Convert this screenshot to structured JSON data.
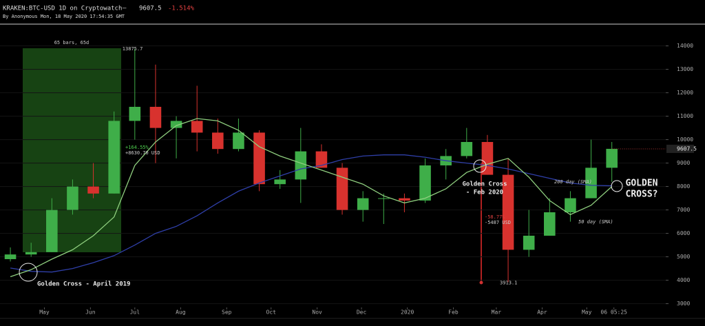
{
  "chart_data": {
    "type": "candlestick",
    "title": "KRAKEN:BTC-USD 1D on Cryptowatch",
    "separator": "—",
    "change": "-1.514%",
    "subtitle": "By Anonymous Mon, 18 May 2020 17:54:35 GMT",
    "x": [
      0.5,
      1.5,
      2.5,
      3.5,
      4.5,
      5.5,
      6.5,
      7.5,
      8.5,
      9.5,
      10.5,
      11.5,
      12.5,
      13.5,
      14.5,
      15.5,
      16.5,
      17.5,
      18.5,
      19.5,
      20.5,
      21.5,
      22.5,
      23.5,
      24.5,
      25.5,
      26.5,
      27.5,
      28.5,
      29.5
    ],
    "open": [
      4900,
      5100,
      5200,
      7000,
      8000,
      7700,
      10800,
      11400,
      10500,
      10800,
      10300,
      9600,
      10300,
      8100,
      8300,
      9500,
      8800,
      7000,
      7500,
      7500,
      7400,
      8900,
      9300,
      9900,
      8500,
      5300,
      5900,
      6900,
      7500,
      8800
    ],
    "high": [
      5400,
      5600,
      7500,
      8300,
      9000,
      11200,
      13875.7,
      13200,
      11000,
      12300,
      10900,
      10900,
      10400,
      8700,
      10500,
      9800,
      9000,
      7800,
      7700,
      7700,
      9200,
      9600,
      10500,
      10200,
      9200,
      7000,
      7500,
      7800,
      10000,
      9900
    ],
    "low": [
      4800,
      5000,
      5200,
      6800,
      7500,
      7700,
      10000,
      9000,
      9200,
      9500,
      9400,
      9500,
      7800,
      7900,
      7300,
      8800,
      6800,
      6500,
      6400,
      6900,
      7300,
      8300,
      9200,
      8500,
      3913.1,
      5000,
      5900,
      6500,
      7500,
      8200
    ],
    "close": [
      5100,
      5200,
      7000,
      8000,
      7700,
      10800,
      11400,
      10500,
      10800,
      10300,
      9600,
      10300,
      8100,
      8300,
      9500,
      8800,
      7000,
      7500,
      7500,
      7400,
      8900,
      9300,
      9900,
      8500,
      5300,
      5900,
      6900,
      7500,
      8800,
      9607.5
    ],
    "up_color": "#3fae49",
    "down_color": "#d8322e",
    "overlays": [
      {
        "name": "200 day (SMA)",
        "color": "#2f3fa8",
        "values": [
          4520,
          4380,
          4350,
          4500,
          4750,
          5050,
          5500,
          6000,
          6300,
          6750,
          7300,
          7800,
          8150,
          8450,
          8750,
          8900,
          9150,
          9300,
          9350,
          9350,
          9250,
          9100,
          9000,
          8900,
          8750,
          8550,
          8350,
          8150,
          8050,
          8030
        ]
      },
      {
        "name": "50 day (SMA)",
        "color": "#8fcf7f",
        "values": [
          4150,
          4450,
          4900,
          5300,
          5900,
          6700,
          8900,
          9900,
          10600,
          10900,
          10800,
          10400,
          9700,
          9300,
          9000,
          8700,
          8400,
          8100,
          7600,
          7300,
          7500,
          7900,
          8600,
          8950,
          9200,
          8400,
          7400,
          6800,
          7200,
          8000
        ]
      }
    ],
    "xlim": [
      0,
      32.1
    ],
    "xticks": [
      {
        "value": 2.14,
        "label": "May"
      },
      {
        "value": 4.36,
        "label": "Jun"
      },
      {
        "value": 6.5,
        "label": "Jul"
      },
      {
        "value": 8.71,
        "label": "Aug"
      },
      {
        "value": 10.93,
        "label": "Sep"
      },
      {
        "value": 13.07,
        "label": "Oct"
      },
      {
        "value": 15.29,
        "label": "Nov"
      },
      {
        "value": 17.43,
        "label": "Dec"
      },
      {
        "value": 19.64,
        "label": "2020"
      },
      {
        "value": 21.86,
        "label": "Feb"
      },
      {
        "value": 23.93,
        "label": "Mar"
      },
      {
        "value": 26.14,
        "label": "Apr"
      },
      {
        "value": 28.29,
        "label": "May"
      },
      {
        "value": 29.6,
        "label": "06 05:25"
      }
    ],
    "ylim": [
      2900,
      14900
    ],
    "yticks": [
      3000,
      4000,
      5000,
      6000,
      7000,
      8000,
      9000,
      10000,
      11000,
      12000,
      13000,
      14000
    ],
    "grid": true,
    "annotations": {
      "range_bars": "65 bars, 65d",
      "gain_pct": "+164.55%",
      "gain_usd": "+8630.70 USD",
      "loss_pct": "-58.77%",
      "loss_usd": "-5487 USD",
      "cross_1": "Golden Cross - April 2019",
      "cross_2a": "Golden Cross",
      "cross_2b": "- Feb 2020",
      "cross_3a": "GOLDEN",
      "cross_3b": "CROSS?"
    }
  }
}
